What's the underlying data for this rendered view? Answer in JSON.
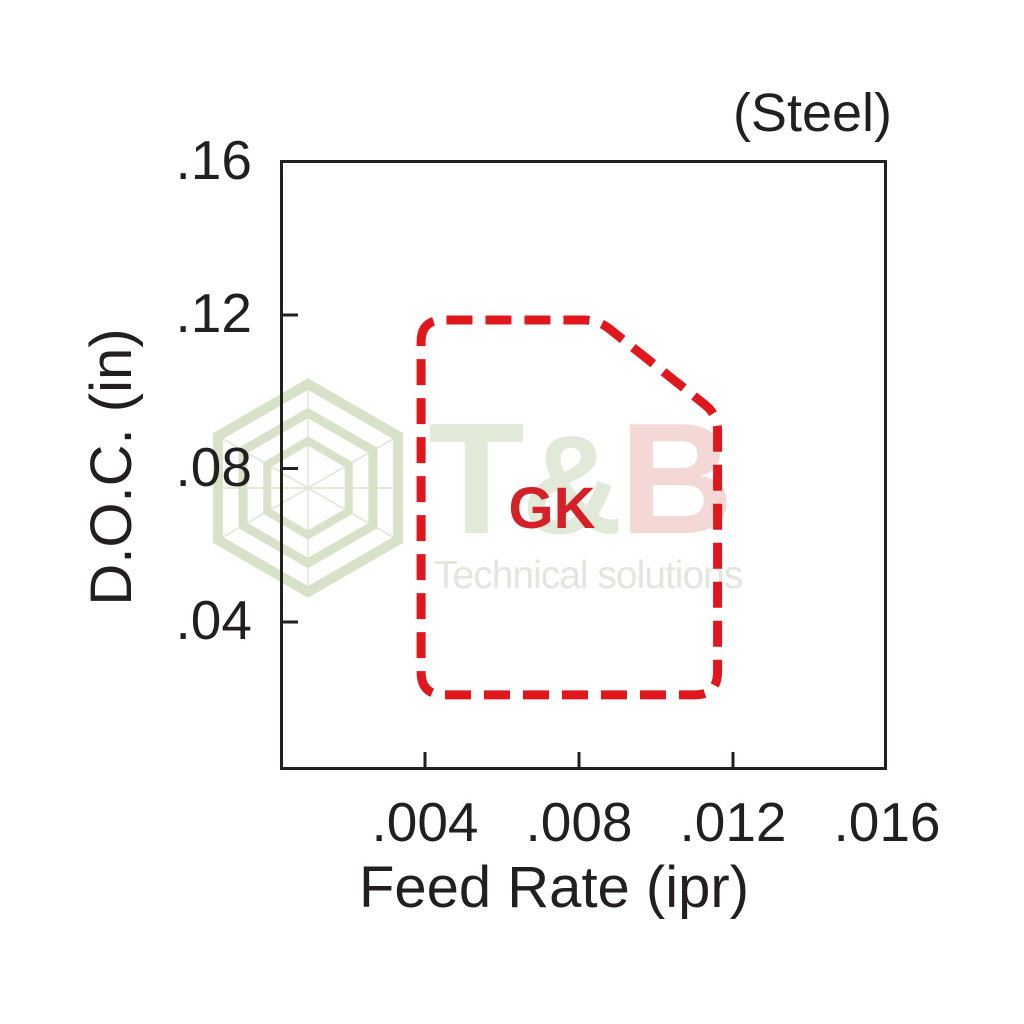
{
  "watermark": {
    "brand_t": "T",
    "brand_amp": "&",
    "brand_b": "B",
    "tagline": "Technical solutions",
    "logo_icon": "hexagon-wireframe-icon",
    "colors": {
      "brand_green": "#e1e9d8",
      "brand_pink": "#f3d8d6",
      "hexagon": "#d8e2c8",
      "hexagon_thin": "#dde4d2",
      "tagline": "#e2e6dd"
    }
  },
  "chart_data": {
    "type": "area",
    "title": "(Steel)",
    "xlabel": "Feed Rate (ipr)",
    "ylabel": "D.O.C. (in)",
    "xlim": [
      0,
      0.016
    ],
    "ylim": [
      0,
      0.16
    ],
    "grid": false,
    "legend": "none",
    "axis_color": "#231f20",
    "x_ticks": [
      {
        "label": ".004",
        "value": 0.004,
        "mark": true
      },
      {
        "label": ".008",
        "value": 0.008,
        "mark": true
      },
      {
        "label": ".012",
        "value": 0.012,
        "mark": true
      },
      {
        "label": ".016",
        "value": 0.016,
        "mark": false
      }
    ],
    "y_ticks": [
      {
        "label": ".16",
        "value": 0.16,
        "mark": false
      },
      {
        "label": ".12",
        "value": 0.12,
        "mark": true
      },
      {
        "label": ".08",
        "value": 0.08,
        "mark": true
      },
      {
        "label": ".04",
        "value": 0.04,
        "mark": true
      }
    ],
    "regions": [
      {
        "label": "GK",
        "label_color": "#d42127",
        "line_color": "#e0171d",
        "line_style": "dashed",
        "label_pos": [
          0.0073,
          0.07
        ],
        "polygon": [
          [
            0.0039,
            0.1187
          ],
          [
            0.0085,
            0.1187
          ],
          [
            0.0116,
            0.094
          ],
          [
            0.0116,
            0.021
          ],
          [
            0.0039,
            0.021
          ]
        ]
      }
    ]
  }
}
